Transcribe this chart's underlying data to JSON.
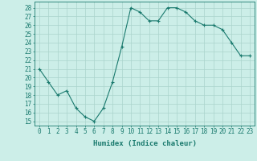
{
  "x": [
    0,
    1,
    2,
    3,
    4,
    5,
    6,
    7,
    8,
    9,
    10,
    11,
    12,
    13,
    14,
    15,
    16,
    17,
    18,
    19,
    20,
    21,
    22,
    23
  ],
  "y": [
    21,
    19.5,
    18,
    18.5,
    16.5,
    15.5,
    15,
    16.5,
    19.5,
    23.5,
    28,
    27.5,
    26.5,
    26.5,
    28,
    28,
    27.5,
    26.5,
    26,
    26,
    25.5,
    24,
    22.5,
    22.5
  ],
  "line_color": "#1a7a6e",
  "marker_color": "#1a7a6e",
  "bg_color": "#cceee8",
  "grid_color": "#aad4cc",
  "xlabel": "Humidex (Indice chaleur)",
  "ylim": [
    14.5,
    28.7
  ],
  "xlim": [
    -0.5,
    23.5
  ],
  "yticks": [
    15,
    16,
    17,
    18,
    19,
    20,
    21,
    22,
    23,
    24,
    25,
    26,
    27,
    28
  ],
  "xticks": [
    0,
    1,
    2,
    3,
    4,
    5,
    6,
    7,
    8,
    9,
    10,
    11,
    12,
    13,
    14,
    15,
    16,
    17,
    18,
    19,
    20,
    21,
    22,
    23
  ],
  "xtick_labels": [
    "0",
    "1",
    "2",
    "3",
    "4",
    "5",
    "6",
    "7",
    "8",
    "9",
    "10",
    "11",
    "12",
    "13",
    "14",
    "15",
    "16",
    "17",
    "18",
    "19",
    "20",
    "21",
    "22",
    "23"
  ],
  "font_color": "#1a7a6e",
  "tick_fontsize": 5.5,
  "xlabel_fontsize": 6.5
}
